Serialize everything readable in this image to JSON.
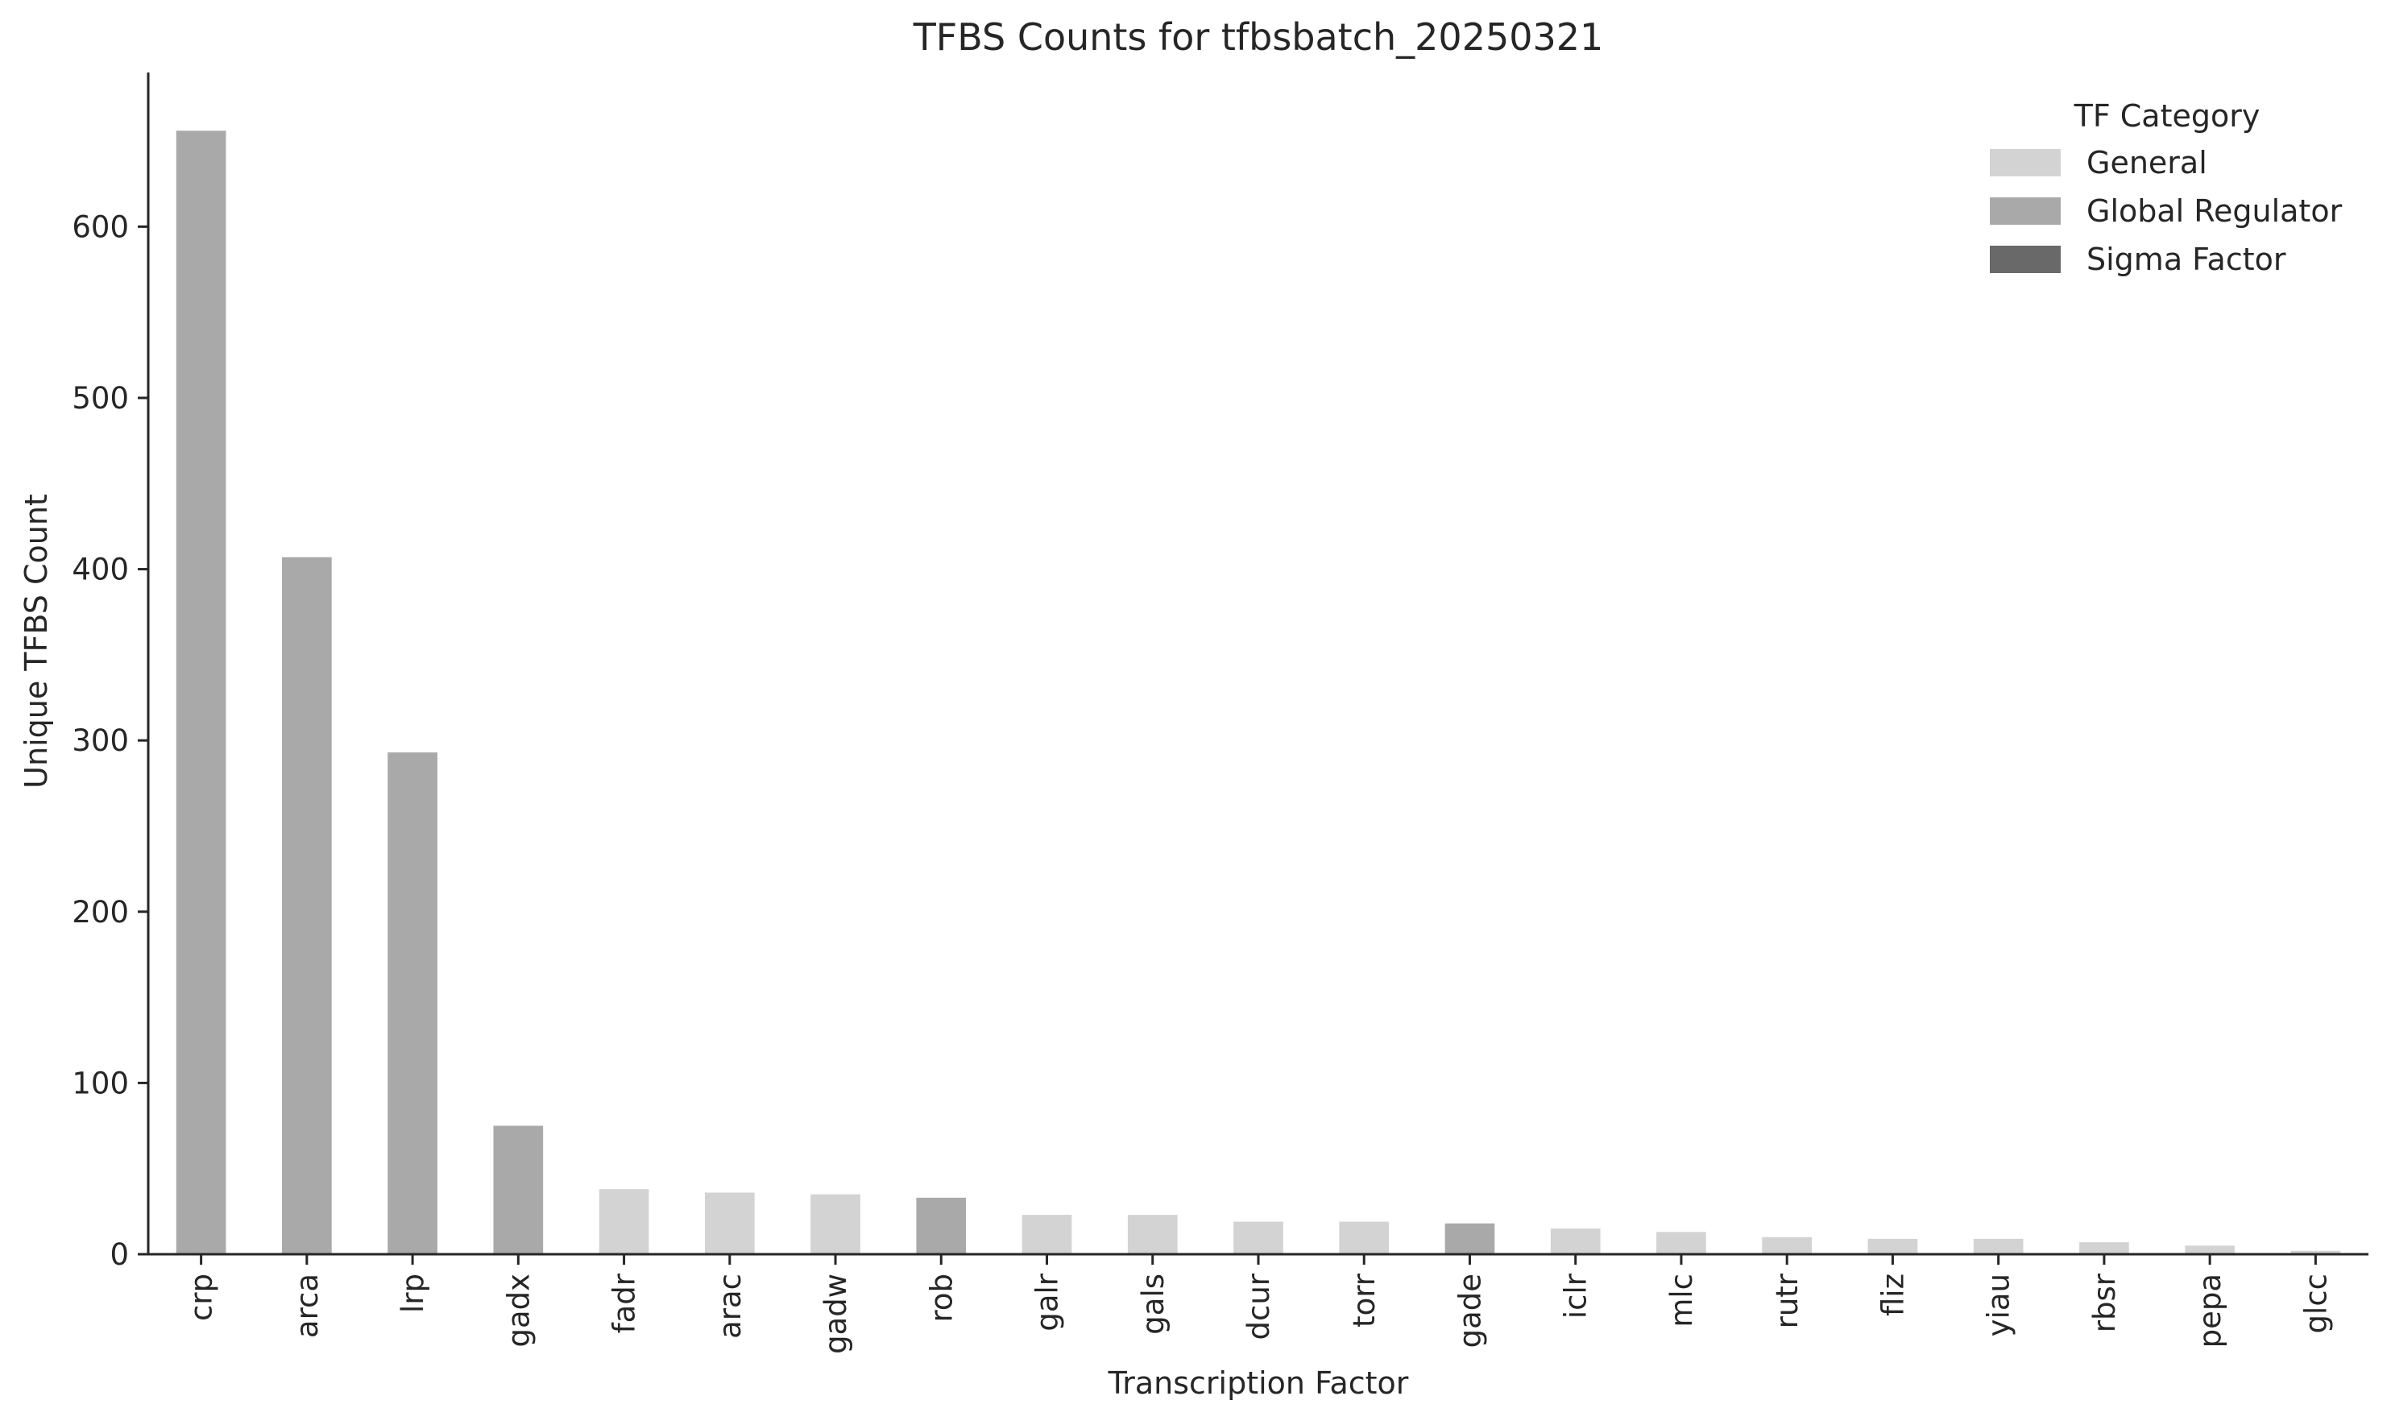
{
  "chart_data": {
    "type": "bar",
    "title": "TFBS Counts for tfbsbatch_20250321",
    "xlabel": "Transcription Factor",
    "ylabel": "Unique TFBS Count",
    "ylim": [
      0,
      690
    ],
    "yticks": [
      0,
      100,
      200,
      300,
      400,
      500,
      600
    ],
    "grid": false,
    "legend": {
      "title": "TF Category",
      "placement": "top-right",
      "entries": [
        {
          "name": "General",
          "color": "#d3d3d3"
        },
        {
          "name": "Global Regulator",
          "color": "#a9a9a9"
        },
        {
          "name": "Sigma Factor",
          "color": "#696969"
        }
      ]
    },
    "categories": [
      "crp",
      "arca",
      "lrp",
      "gadx",
      "fadr",
      "arac",
      "gadw",
      "rob",
      "galr",
      "gals",
      "dcur",
      "torr",
      "gade",
      "iclr",
      "mlc",
      "rutr",
      "fliz",
      "yiau",
      "rbsr",
      "pepa",
      "glcc"
    ],
    "values": [
      656,
      407,
      293,
      75,
      38,
      36,
      35,
      33,
      23,
      23,
      19,
      19,
      18,
      15,
      13,
      10,
      9,
      9,
      7,
      5,
      2
    ],
    "category_group": [
      "Global Regulator",
      "Global Regulator",
      "Global Regulator",
      "Global Regulator",
      "General",
      "General",
      "General",
      "Global Regulator",
      "General",
      "General",
      "General",
      "General",
      "Global Regulator",
      "General",
      "General",
      "General",
      "General",
      "General",
      "General",
      "General",
      "General"
    ]
  }
}
